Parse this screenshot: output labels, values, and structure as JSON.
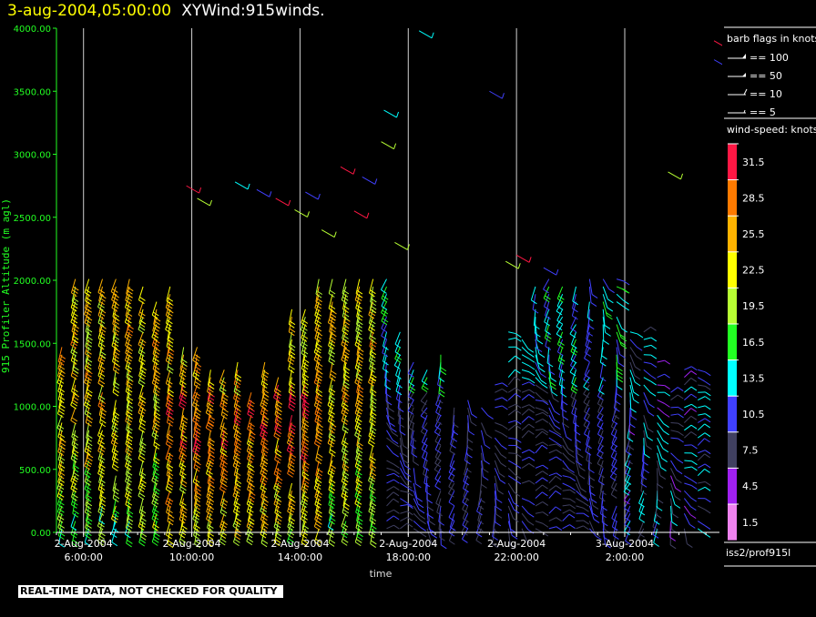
{
  "header": {
    "date": "3-aug-2004,05:00:00",
    "product": "XYWind:915winds."
  },
  "notice": "REAL-TIME DATA, NOT CHECKED FOR QUALITY",
  "legend": {
    "barb_title": "barb flags in knots",
    "barbs": [
      {
        "label": "== 100"
      },
      {
        "label": "== 50"
      },
      {
        "label": "== 10"
      },
      {
        "label": "== 5"
      }
    ],
    "speed_title": "wind-speed: knots",
    "bins": [
      {
        "label": "31.5",
        "color": "#ff1744"
      },
      {
        "label": "28.5",
        "color": "#ff7a00"
      },
      {
        "label": "25.5",
        "color": "#ffb300"
      },
      {
        "label": "22.5",
        "color": "#ffff00"
      },
      {
        "label": "19.5",
        "color": "#b7ff33"
      },
      {
        "label": "16.5",
        "color": "#22ff22"
      },
      {
        "label": "13.5",
        "color": "#00ffff"
      },
      {
        "label": "10.5",
        "color": "#4040ff"
      },
      {
        "label": "7.5",
        "color": "#404060"
      },
      {
        "label": "4.5",
        "color": "#a020f0"
      },
      {
        "label": "1.5",
        "color": "#ee82ee"
      }
    ],
    "source": "iss2/prof915l"
  },
  "chart_data": {
    "type": "scatter",
    "xlabel": "time",
    "ylabel": "915 Profiler Altitude (m agl)",
    "ylim": [
      0,
      4000
    ],
    "yticks": [
      "0.00",
      "500.00",
      "1000.00",
      "1500.00",
      "2000.00",
      "2500.00",
      "3000.00",
      "3500.00",
      "4000.00"
    ],
    "xticks": [
      {
        "date": "2-Aug-2004",
        "time": "6:00:00",
        "hour": 6
      },
      {
        "date": "2-Aug-2004",
        "time": "10:00:00",
        "hour": 10
      },
      {
        "date": "2-Aug-2004",
        "time": "14:00:00",
        "hour": 14
      },
      {
        "date": "2-Aug-2004",
        "time": "18:00:00",
        "hour": 18
      },
      {
        "date": "2-Aug-2004",
        "time": "22:00:00",
        "hour": 22
      },
      {
        "date": "3-Aug-2004",
        "time": "2:00:00",
        "hour": 26
      }
    ],
    "xlim_hours": [
      5,
      29.5
    ],
    "grid": "vertical lines at each time tick",
    "series": [
      {
        "hour_start": 5.2,
        "hour_end": 28.8,
        "interval": 0.5,
        "altitude_start": 30,
        "altitude_end": 2050,
        "altitude_step": 60
      }
    ]
  }
}
